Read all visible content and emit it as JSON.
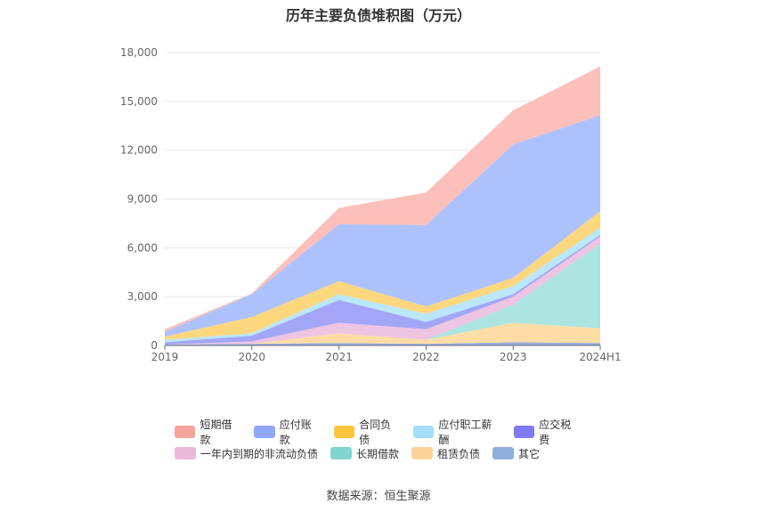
{
  "chart_data": {
    "type": "area",
    "stacked": true,
    "title": "历年主要负债堆积图（万元）",
    "categories": [
      "2019",
      "2020",
      "2021",
      "2022",
      "2023",
      "2024H1"
    ],
    "ylim": [
      0,
      18000
    ],
    "yticks": [
      "0",
      "3,000",
      "6,000",
      "9,000",
      "12,000",
      "15,000",
      "18,000"
    ],
    "grid": true,
    "legend_position": "bottom",
    "series": [
      {
        "name": "其它",
        "color": "#8fa9d8",
        "values": [
          50,
          100,
          150,
          100,
          200,
          150
        ]
      },
      {
        "name": "租赁负债",
        "color": "#fddba0",
        "values": [
          0,
          0,
          600,
          250,
          1200,
          900
        ]
      },
      {
        "name": "长期借款",
        "color": "#a8e3df",
        "values": [
          0,
          0,
          0,
          0,
          1100,
          5200
        ]
      },
      {
        "name": "一年内到期的非流动负债",
        "color": "#ecc1e0",
        "values": [
          0,
          150,
          650,
          650,
          500,
          450
        ]
      },
      {
        "name": "应交税费",
        "color": "#9ea1f6",
        "values": [
          150,
          350,
          1400,
          450,
          150,
          100
        ]
      },
      {
        "name": "应付职工薪酬",
        "color": "#b6e6fb",
        "values": [
          150,
          150,
          350,
          500,
          500,
          450
        ]
      },
      {
        "name": "合同负债",
        "color": "#fdd577",
        "values": [
          200,
          1000,
          800,
          450,
          500,
          1000
        ]
      },
      {
        "name": "应付账款",
        "color": "#a9bffd",
        "values": [
          300,
          1400,
          3500,
          5000,
          8200,
          5900
        ]
      },
      {
        "name": "短期借款",
        "color": "#fcbcb5",
        "values": [
          150,
          50,
          1000,
          2000,
          2100,
          3000
        ]
      }
    ]
  },
  "legend": {
    "row1": [
      {
        "name": "短期借款",
        "color": "#f6a49a"
      },
      {
        "name": "应付账款",
        "color": "#8fa8fb"
      },
      {
        "name": "合同负债",
        "color": "#fdc53d"
      },
      {
        "name": "应付职工薪酬",
        "color": "#a5defa"
      },
      {
        "name": "应交税费",
        "color": "#7f79f2"
      }
    ],
    "row2": [
      {
        "name": "一年内到期的非流动负债",
        "color": "#ebb8dc"
      },
      {
        "name": "长期借款",
        "color": "#7fd5cf"
      },
      {
        "name": "租赁负债",
        "color": "#fdd39a"
      },
      {
        "name": "其它",
        "color": "#8faedc"
      }
    ]
  },
  "source": "数据来源：恒生聚源"
}
